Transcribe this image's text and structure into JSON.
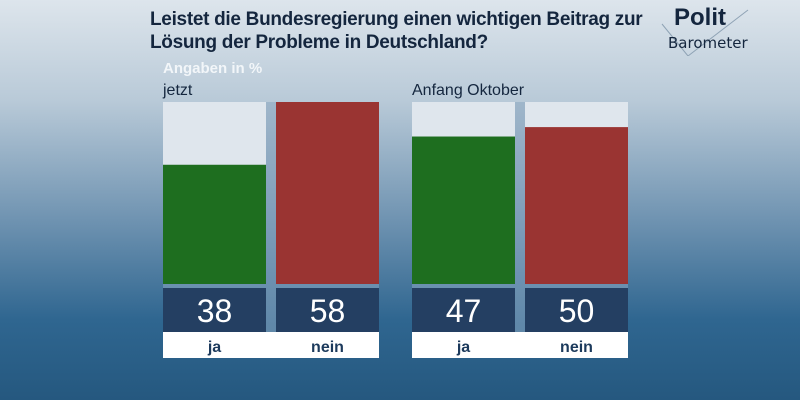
{
  "chart_data": {
    "type": "bar",
    "title": "Leistet die Bundesregierung einen wichtigen Beitrag zur Lösung der Probleme in Deutschland?",
    "unit_label": "Angaben in %",
    "categories": [
      "ja",
      "nein"
    ],
    "groups": [
      {
        "name": "jetzt",
        "values": [
          38,
          58
        ]
      },
      {
        "name": "Anfang Oktober",
        "values": [
          47,
          50
        ]
      }
    ],
    "colors": {
      "ja": "#1e6e1f",
      "nein": "#9a3432",
      "value_box": "#243f62",
      "bar_bg": "#dfe6ed"
    }
  },
  "logo": {
    "line1": "Polit",
    "line2": "Barometer"
  }
}
